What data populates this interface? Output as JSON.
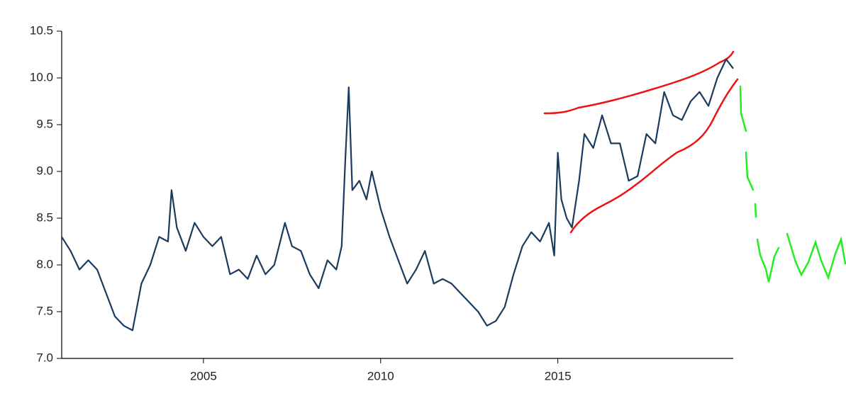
{
  "chart_data": {
    "type": "line",
    "color": "#1a3a5e",
    "x": [
      2001.0,
      2001.25,
      2001.5,
      2001.75,
      2002.0,
      2002.25,
      2002.5,
      2002.75,
      2003.0,
      2003.25,
      2003.5,
      2003.75,
      2004.0,
      2004.1,
      2004.25,
      2004.5,
      2004.75,
      2005.0,
      2005.25,
      2005.5,
      2005.75,
      2006.0,
      2006.25,
      2006.5,
      2006.75,
      2007.0,
      2007.3,
      2007.5,
      2007.75,
      2008.0,
      2008.25,
      2008.5,
      2008.75,
      2008.9,
      2009.0,
      2009.1,
      2009.2,
      2009.4,
      2009.6,
      2009.75,
      2010.0,
      2010.25,
      2010.5,
      2010.75,
      2011.0,
      2011.25,
      2011.5,
      2011.75,
      2012.0,
      2012.25,
      2012.5,
      2012.75,
      2013.0,
      2013.25,
      2013.5,
      2013.75,
      2014.0,
      2014.25,
      2014.5,
      2014.75,
      2014.9,
      2015.0,
      2015.1,
      2015.25,
      2015.4,
      2015.6,
      2015.75,
      2016.0,
      2016.25,
      2016.5,
      2016.75,
      2017.0,
      2017.25,
      2017.5,
      2017.75,
      2018.0,
      2018.25,
      2018.5,
      2018.75,
      2019.0,
      2019.25,
      2019.5,
      2019.75,
      2019.95
    ],
    "values": [
      8.3,
      8.15,
      7.95,
      8.05,
      7.95,
      7.7,
      7.45,
      7.35,
      7.3,
      7.8,
      8.0,
      8.3,
      8.25,
      8.8,
      8.4,
      8.15,
      8.45,
      8.3,
      8.2,
      8.3,
      7.9,
      7.95,
      7.85,
      8.1,
      7.9,
      8.0,
      8.45,
      8.2,
      8.15,
      7.9,
      7.75,
      8.05,
      7.95,
      8.2,
      9.1,
      9.9,
      8.8,
      8.9,
      8.7,
      9.0,
      8.6,
      8.3,
      8.05,
      7.8,
      7.95,
      8.15,
      7.8,
      7.85,
      7.8,
      7.7,
      7.6,
      7.5,
      7.35,
      7.4,
      7.55,
      7.9,
      8.2,
      8.35,
      8.25,
      8.45,
      8.1,
      9.2,
      8.7,
      8.5,
      8.4,
      8.9,
      9.4,
      9.25,
      9.6,
      9.3,
      9.3,
      8.9,
      8.95,
      9.4,
      9.3,
      9.85,
      9.6,
      9.55,
      9.75,
      9.85,
      9.7,
      10.0,
      10.2,
      10.1
    ],
    "xlim": [
      2001,
      2019.95
    ],
    "ylim": [
      7.0,
      10.5
    ],
    "xticks": [
      2005,
      2010,
      2015
    ],
    "yticks": [
      {
        "value": 7.0,
        "label": "7.0"
      },
      7.5,
      {
        "value": 8.0,
        "label": "8.0"
      },
      8.5,
      {
        "value": 9.0,
        "label": "9.0"
      },
      9.5,
      {
        "value": 10.0,
        "label": "10.0"
      },
      10.5
    ]
  }
}
